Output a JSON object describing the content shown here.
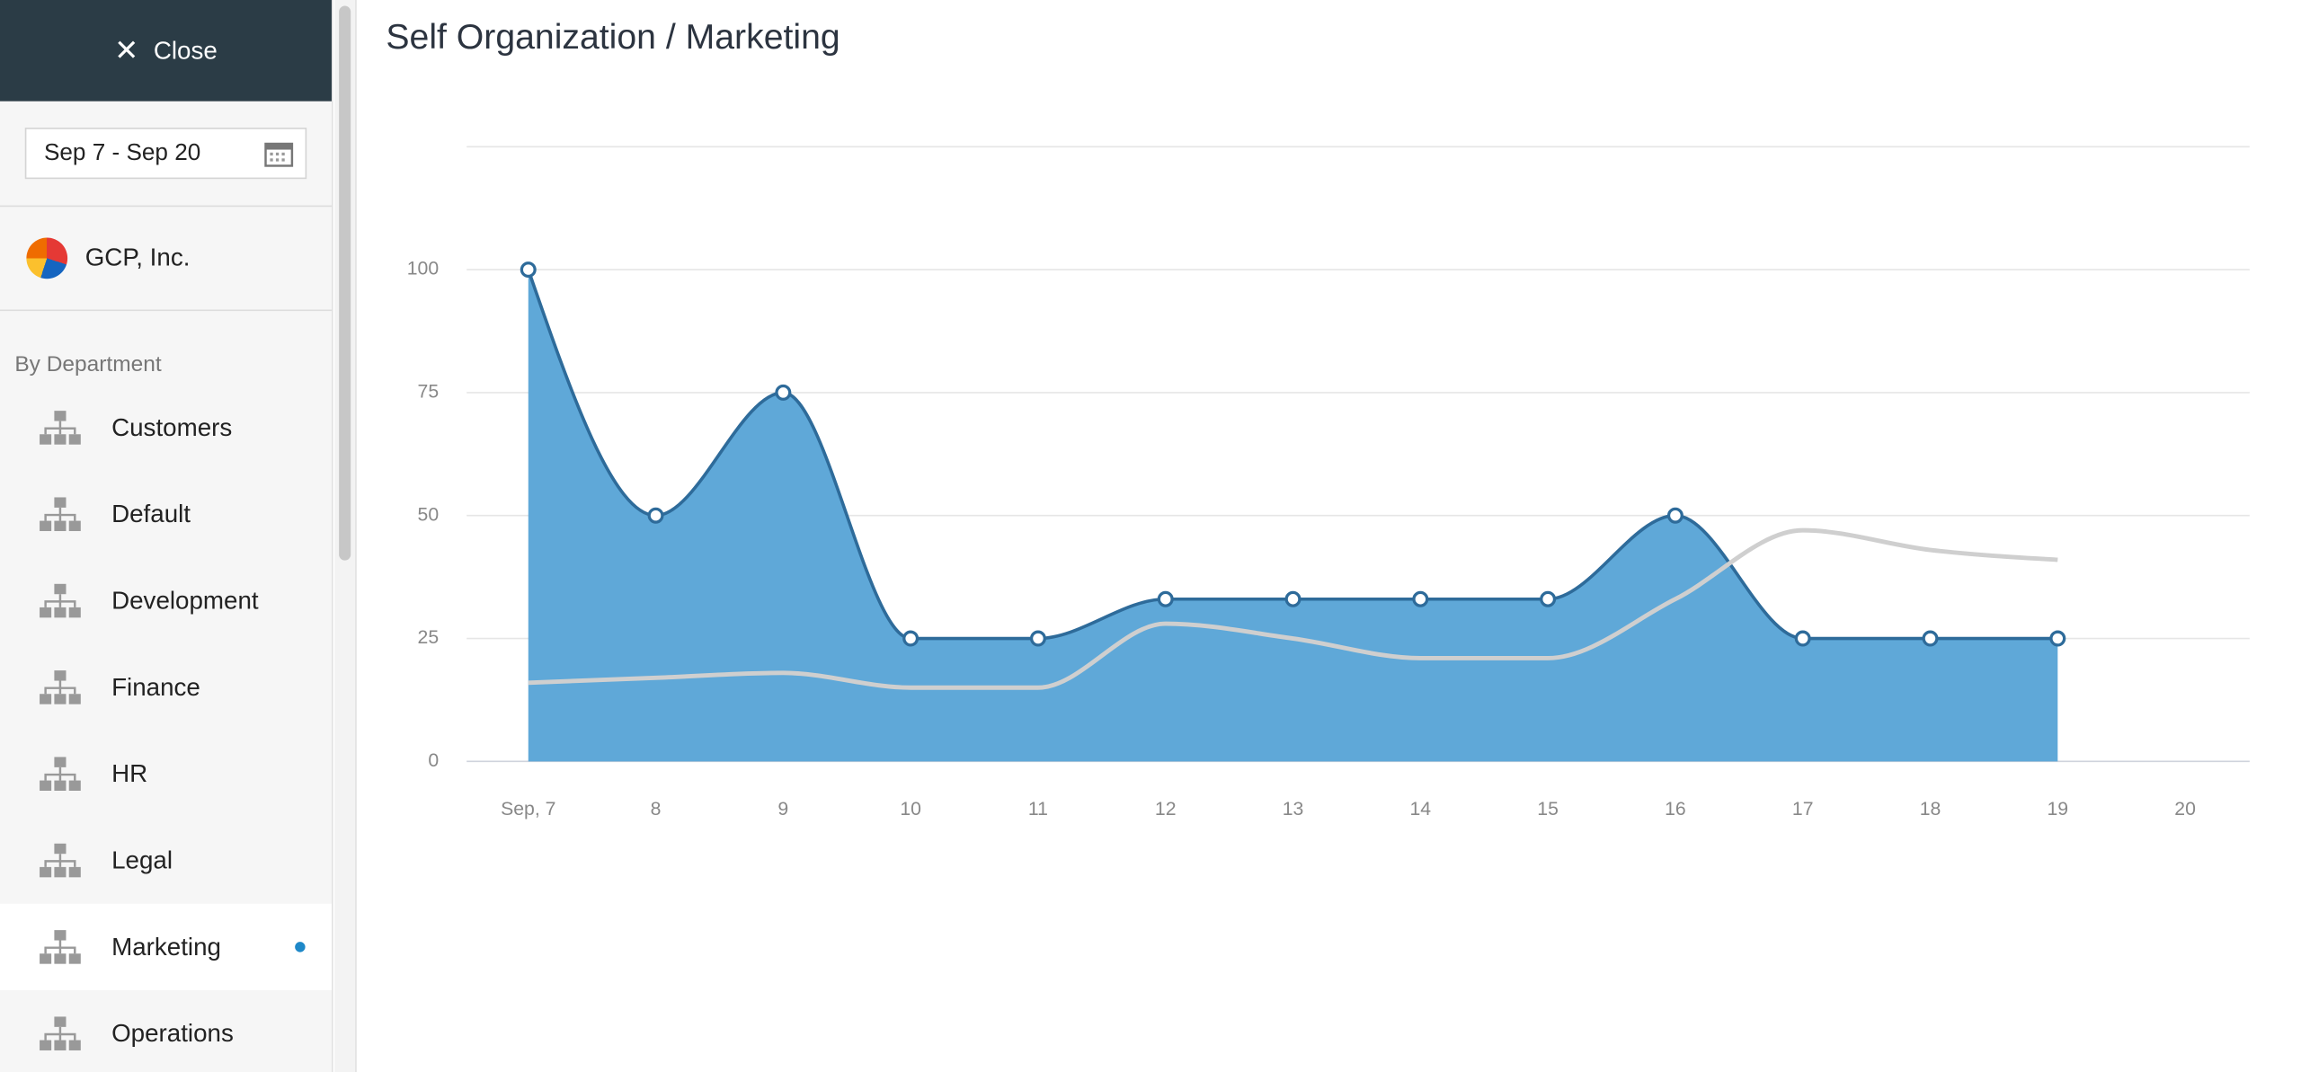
{
  "sidebar": {
    "close": "Close",
    "date_range": "Sep 7 - Sep 20",
    "company": "GCP, Inc.",
    "section": "By Department",
    "departments": [
      {
        "label": "Customers"
      },
      {
        "label": "Default"
      },
      {
        "label": "Development"
      },
      {
        "label": "Finance"
      },
      {
        "label": "HR"
      },
      {
        "label": "Legal"
      },
      {
        "label": "Marketing",
        "selected": true
      },
      {
        "label": "Operations"
      }
    ]
  },
  "header": {
    "title": "Self Organization / Marketing"
  },
  "chart_data": {
    "type": "area",
    "categories": [
      "Sep, 7",
      "8",
      "9",
      "10",
      "11",
      "12",
      "13",
      "14",
      "15",
      "16",
      "17",
      "18",
      "19",
      "20"
    ],
    "series": [
      {
        "type": "area",
        "color": "#5fa8d8",
        "line_color": "#2e6b9a",
        "markers": true,
        "values": [
          100,
          50,
          75,
          25,
          25,
          33,
          33,
          33,
          33,
          50,
          25,
          25,
          25,
          null
        ]
      },
      {
        "type": "line",
        "color": "#cfcfcf",
        "markers": false,
        "values": [
          16,
          17,
          18,
          15,
          15,
          28,
          25,
          21,
          21,
          33,
          47,
          43,
          41,
          null
        ]
      }
    ],
    "ylim": [
      0,
      125
    ],
    "yticks": [
      0,
      25,
      50,
      75,
      100
    ],
    "grid": true
  }
}
